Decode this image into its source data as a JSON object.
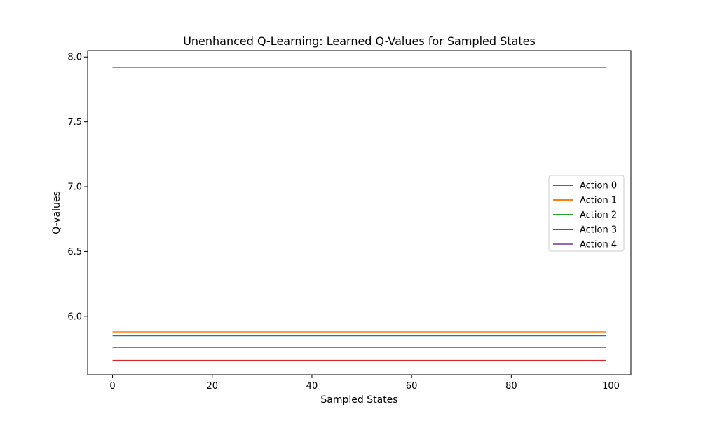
{
  "chart_data": {
    "type": "line",
    "title": "Unenhanced Q-Learning: Learned Q-Values for Sampled States",
    "xlabel": "Sampled States",
    "ylabel": "Q-values",
    "x": [
      0,
      99
    ],
    "xlim": [
      -5,
      104
    ],
    "ylim": [
      5.55,
      8.05
    ],
    "xticks": [
      0,
      20,
      40,
      60,
      80,
      100
    ],
    "xtick_labels": [
      "0",
      "20",
      "40",
      "60",
      "80",
      "100"
    ],
    "yticks": [
      6.0,
      6.5,
      7.0,
      7.5,
      8.0
    ],
    "ytick_labels": [
      "6.0",
      "6.5",
      "7.0",
      "7.5",
      "8.0"
    ],
    "grid": false,
    "legend_position": "center-right",
    "series": [
      {
        "name": "Action 0",
        "color": "#1f77b4",
        "values": [
          5.85,
          5.85
        ]
      },
      {
        "name": "Action 1",
        "color": "#ff7f0e",
        "values": [
          5.88,
          5.88
        ]
      },
      {
        "name": "Action 2",
        "color": "#2ca02c",
        "values": [
          7.92,
          7.92
        ]
      },
      {
        "name": "Action 3",
        "color": "#d62728",
        "values": [
          5.66,
          5.66
        ]
      },
      {
        "name": "Action 4",
        "color": "#9467bd",
        "values": [
          5.76,
          5.76
        ]
      }
    ]
  }
}
